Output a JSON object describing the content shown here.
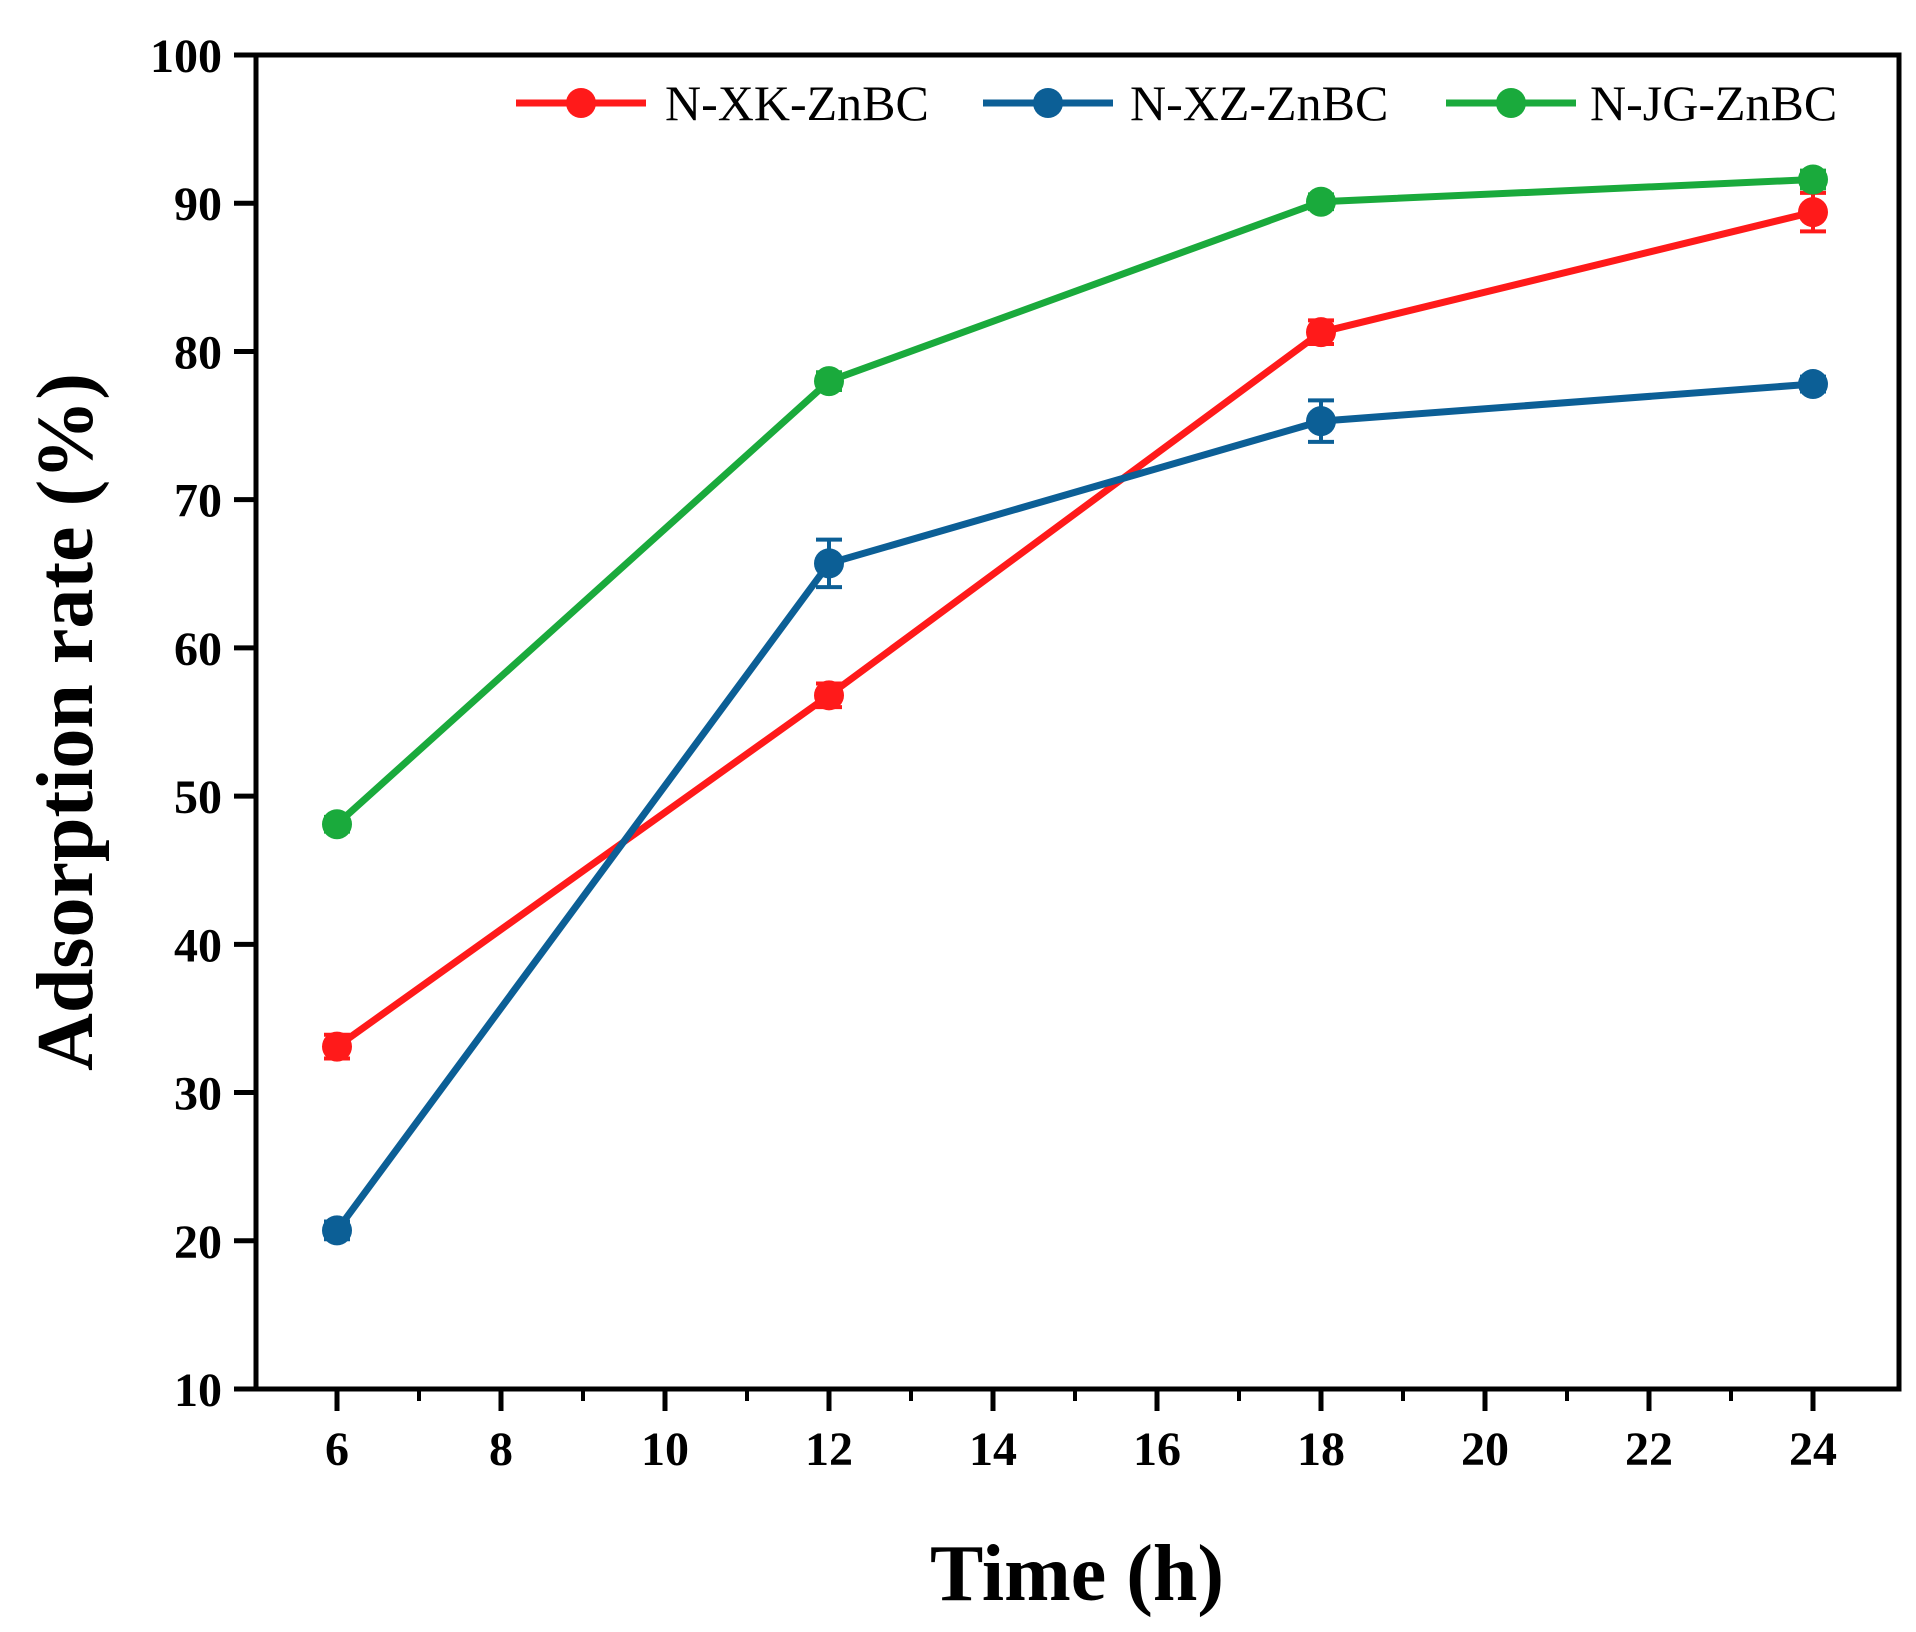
{
  "chart_data": {
    "type": "line",
    "title": "",
    "xlabel": "Time (h)",
    "ylabel": "Adsorption rate (%)",
    "x": [
      6,
      12,
      18,
      24
    ],
    "xlim": [
      5,
      25
    ],
    "ylim": [
      10,
      100
    ],
    "xticks": [
      6,
      8,
      10,
      12,
      14,
      16,
      18,
      20,
      22,
      24
    ],
    "yticks": [
      10,
      20,
      30,
      40,
      50,
      60,
      70,
      80,
      90,
      100
    ],
    "grid": false,
    "legend_position": "top-right",
    "series": [
      {
        "name": "N-XK-ZnBC",
        "color": "#ff1a1a",
        "values": [
          33.1,
          56.8,
          81.3,
          89.4
        ],
        "errors": [
          0.8,
          0.8,
          0.8,
          1.3
        ]
      },
      {
        "name": "N-XZ-ZnBC",
        "color": "#0c5f96",
        "values": [
          20.7,
          65.7,
          75.3,
          77.8
        ],
        "errors": [
          0.6,
          1.6,
          1.4,
          0.5
        ]
      },
      {
        "name": "N-JG-ZnBC",
        "color": "#1aaa3c",
        "values": [
          48.1,
          78.0,
          90.1,
          91.6
        ],
        "errors": [
          0.5,
          0.6,
          0.5,
          0.6
        ]
      }
    ]
  }
}
